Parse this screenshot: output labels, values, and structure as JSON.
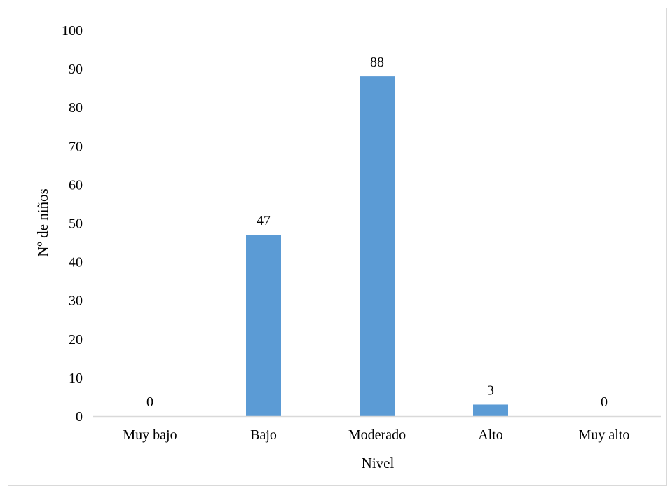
{
  "chart_data": {
    "type": "bar",
    "categories": [
      "Muy bajo",
      "Bajo",
      "Moderado",
      "Alto",
      "Muy alto"
    ],
    "values": [
      0,
      47,
      88,
      3,
      0
    ],
    "data_labels": [
      "0",
      "47",
      "88",
      "3",
      "0"
    ],
    "title": "",
    "xlabel": "Nivel",
    "ylabel": "Nº de niños",
    "ylim": [
      0,
      100
    ],
    "y_ticks": [
      0,
      10,
      20,
      30,
      40,
      50,
      60,
      70,
      80,
      90,
      100
    ],
    "y_tick_labels": [
      "0",
      "10",
      "20",
      "30",
      "40",
      "50",
      "60",
      "70",
      "80",
      "90",
      "100"
    ],
    "grid": false,
    "legend": "none",
    "bar_color": "#5b9bd5",
    "axis_color": "#d9d9d9",
    "text_color": "#000000"
  }
}
